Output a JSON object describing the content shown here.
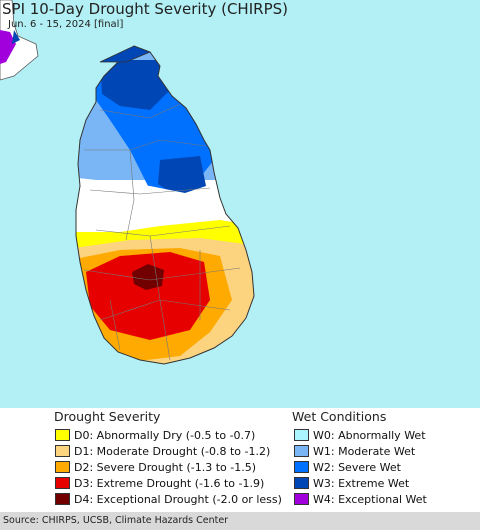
{
  "header": {
    "title": "SPI 10-Day Drought Severity (CHIRPS)",
    "subtitle": "Jun. 6 - 15, 2024 [final]"
  },
  "colors": {
    "ocean": "#b3f0f5",
    "neutral": "#ffffff",
    "D0": "#ffff00",
    "D1": "#fcd37f",
    "D2": "#ffaa00",
    "D3": "#e60000",
    "D4": "#730000",
    "W0": "#aaf5ff",
    "W1": "#7ab6f5",
    "W2": "#0070ff",
    "W3": "#0046b4",
    "W4": "#a100dc"
  },
  "legend": {
    "drought_heading": "Drought Severity",
    "wet_heading": "Wet Conditions",
    "drought_items": [
      {
        "code": "D0",
        "label": "D0: Abnormally Dry (-0.5 to -0.7)"
      },
      {
        "code": "D1",
        "label": "D1: Moderate Drought (-0.8 to -1.2)"
      },
      {
        "code": "D2",
        "label": "D2: Severe Drought (-1.3 to -1.5)"
      },
      {
        "code": "D3",
        "label": "D3: Extreme Drought (-1.6 to -1.9)"
      },
      {
        "code": "D4",
        "label": "D4: Exceptional Drought (-2.0 or less)"
      }
    ],
    "wet_items": [
      {
        "code": "W0",
        "label": "W0: Abnormally Wet"
      },
      {
        "code": "W1",
        "label": "W1: Moderate Wet"
      },
      {
        "code": "W2",
        "label": "W2: Severe Wet"
      },
      {
        "code": "W3",
        "label": "W3: Extreme Wet"
      },
      {
        "code": "W4",
        "label": "W4: Exceptional Wet"
      }
    ]
  },
  "footer": {
    "source": "Source: CHIRPS, UCSB, Climate Hazards Center"
  }
}
